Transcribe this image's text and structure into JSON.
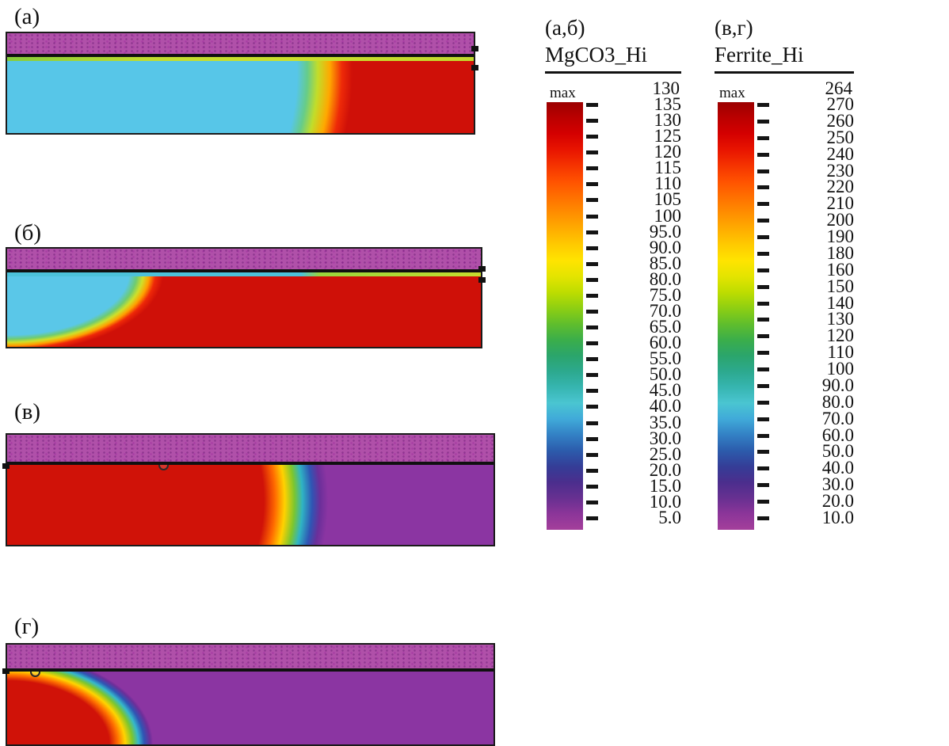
{
  "figure": {
    "panels": [
      {
        "id": "a",
        "label": "(а)",
        "description": "cyan region on left ~60% of width, red region on right, magenta-purple band on top separated by black line, thin yellow-green interface line under the band"
      },
      {
        "id": "b",
        "label": "(б)",
        "description": "red region dominates, cyan region confined to upper-left ~25% of width, magenta-purple band on top, thin cyan/green interface line under the band"
      },
      {
        "id": "v",
        "label": "(в)",
        "description": "red region on left ~60% of width transitioning through rainbow fringe to purple region on right, magenta-purple band on top, circle probe marker near top-left of field"
      },
      {
        "id": "g",
        "label": "(г)",
        "description": "purple region dominates, red blob confined to lower-left corner with rainbow fringe, magenta-purple band on top, circle probe marker near top-left of field"
      }
    ],
    "legends": [
      {
        "id": "mgco3",
        "panels_label": "(а,б)",
        "title": "MgCO3_Hi",
        "max_label": "max",
        "max_value": "130",
        "ticks": [
          "135",
          "130",
          "125",
          "120",
          "115",
          "110",
          "105",
          "100",
          "95.0",
          "90.0",
          "85.0",
          "80.0",
          "75.0",
          "70.0",
          "65.0",
          "60.0",
          "55.0",
          "50.0",
          "45.0",
          "40.0",
          "35.0",
          "30.0",
          "25.0",
          "20.0",
          "15.0",
          "10.0",
          "5.0"
        ],
        "colors": [
          "#9b0000",
          "#bb0000",
          "#d40000",
          "#e81400",
          "#f53300",
          "#ff5200",
          "#ff7000",
          "#ff8e00",
          "#ffac00",
          "#ffca00",
          "#ffe400",
          "#e4e400",
          "#bedd00",
          "#8ecf12",
          "#60be2c",
          "#3bae4a",
          "#2ba56b",
          "#2ca98e",
          "#36b5b0",
          "#4ac5d1",
          "#40aad9",
          "#3381c5",
          "#2c5cac",
          "#343d97",
          "#4b2e8d",
          "#673091",
          "#8c3599",
          "#a43f9b"
        ]
      },
      {
        "id": "ferrite",
        "panels_label": "(в,г)",
        "title": "Ferrite_Hi",
        "max_label": "max",
        "max_value": "264",
        "ticks": [
          "270",
          "260",
          "250",
          "240",
          "230",
          "220",
          "210",
          "200",
          "190",
          "180",
          "160",
          "150",
          "140",
          "130",
          "120",
          "110",
          "100",
          "90.0",
          "80.0",
          "70.0",
          "60.0",
          "50.0",
          "40.0",
          "30.0",
          "20.0",
          "10.0"
        ],
        "colors": [
          "#9b0000",
          "#bb0000",
          "#d40000",
          "#e81400",
          "#f53300",
          "#ff5200",
          "#ff7000",
          "#ff8e00",
          "#ffac00",
          "#ffca00",
          "#ffe400",
          "#e4e400",
          "#bedd00",
          "#8ecf12",
          "#60be2c",
          "#3bae4a",
          "#2ba56b",
          "#2ca98e",
          "#36b5b0",
          "#4ac5d1",
          "#40aad9",
          "#3381c5",
          "#2c5cac",
          "#343d97",
          "#4b2e8d",
          "#673091",
          "#8c3599",
          "#a43f9b"
        ]
      }
    ],
    "key_colors": {
      "band_purple": "#b050a9",
      "field_purple": "#8b35a2",
      "red_high": "#cf1008",
      "cyan_low": "#57c6e8"
    }
  },
  "chart_data": [
    {
      "type": "heatmap",
      "title": "MgCO3_Hi",
      "applies_to_panels": [
        "(а)",
        "(б)"
      ],
      "colorbar": {
        "orientation": "vertical",
        "max_label": "max",
        "max_value": 130,
        "tick_values": [
          135,
          130,
          125,
          120,
          115,
          110,
          105,
          100,
          95.0,
          90.0,
          85.0,
          80.0,
          75.0,
          70.0,
          65.0,
          60.0,
          55.0,
          50.0,
          45.0,
          40.0,
          35.0,
          30.0,
          25.0,
          20.0,
          15.0,
          10.0,
          5.0
        ],
        "top_color": "#9b0000",
        "bottom_color": "#a43f9b"
      },
      "panels": [
        {
          "label": "(а)",
          "regions": {
            "left": "cyan ~40-50 value zone spanning ~60% width",
            "right": "red high-value zone",
            "top_band": "purple low-value zone"
          }
        },
        {
          "label": "(б)",
          "regions": {
            "left_top": "cyan ~40-50 value zone spanning ~25% width",
            "rest": "red high-value zone",
            "top_band": "purple low-value zone"
          }
        }
      ]
    },
    {
      "type": "heatmap",
      "title": "Ferrite_Hi",
      "applies_to_panels": [
        "(в)",
        "(г)"
      ],
      "colorbar": {
        "orientation": "vertical",
        "max_label": "max",
        "max_value": 264,
        "tick_values": [
          270,
          260,
          250,
          240,
          230,
          220,
          210,
          200,
          190,
          180,
          160,
          150,
          140,
          130,
          120,
          110,
          100,
          90.0,
          80.0,
          70.0,
          60.0,
          50.0,
          40.0,
          30.0,
          20.0,
          10.0
        ],
        "top_color": "#9b0000",
        "bottom_color": "#a43f9b"
      },
      "panels": [
        {
          "label": "(в)",
          "regions": {
            "left": "red high-value zone spanning ~60% width",
            "right": "purple low-value zone",
            "top_band": "purple low-value zone"
          }
        },
        {
          "label": "(г)",
          "regions": {
            "bottom_left": "red high-value blob ~25% width",
            "rest": "purple low-value zone",
            "top_band": "purple low-value zone"
          }
        }
      ]
    }
  ]
}
